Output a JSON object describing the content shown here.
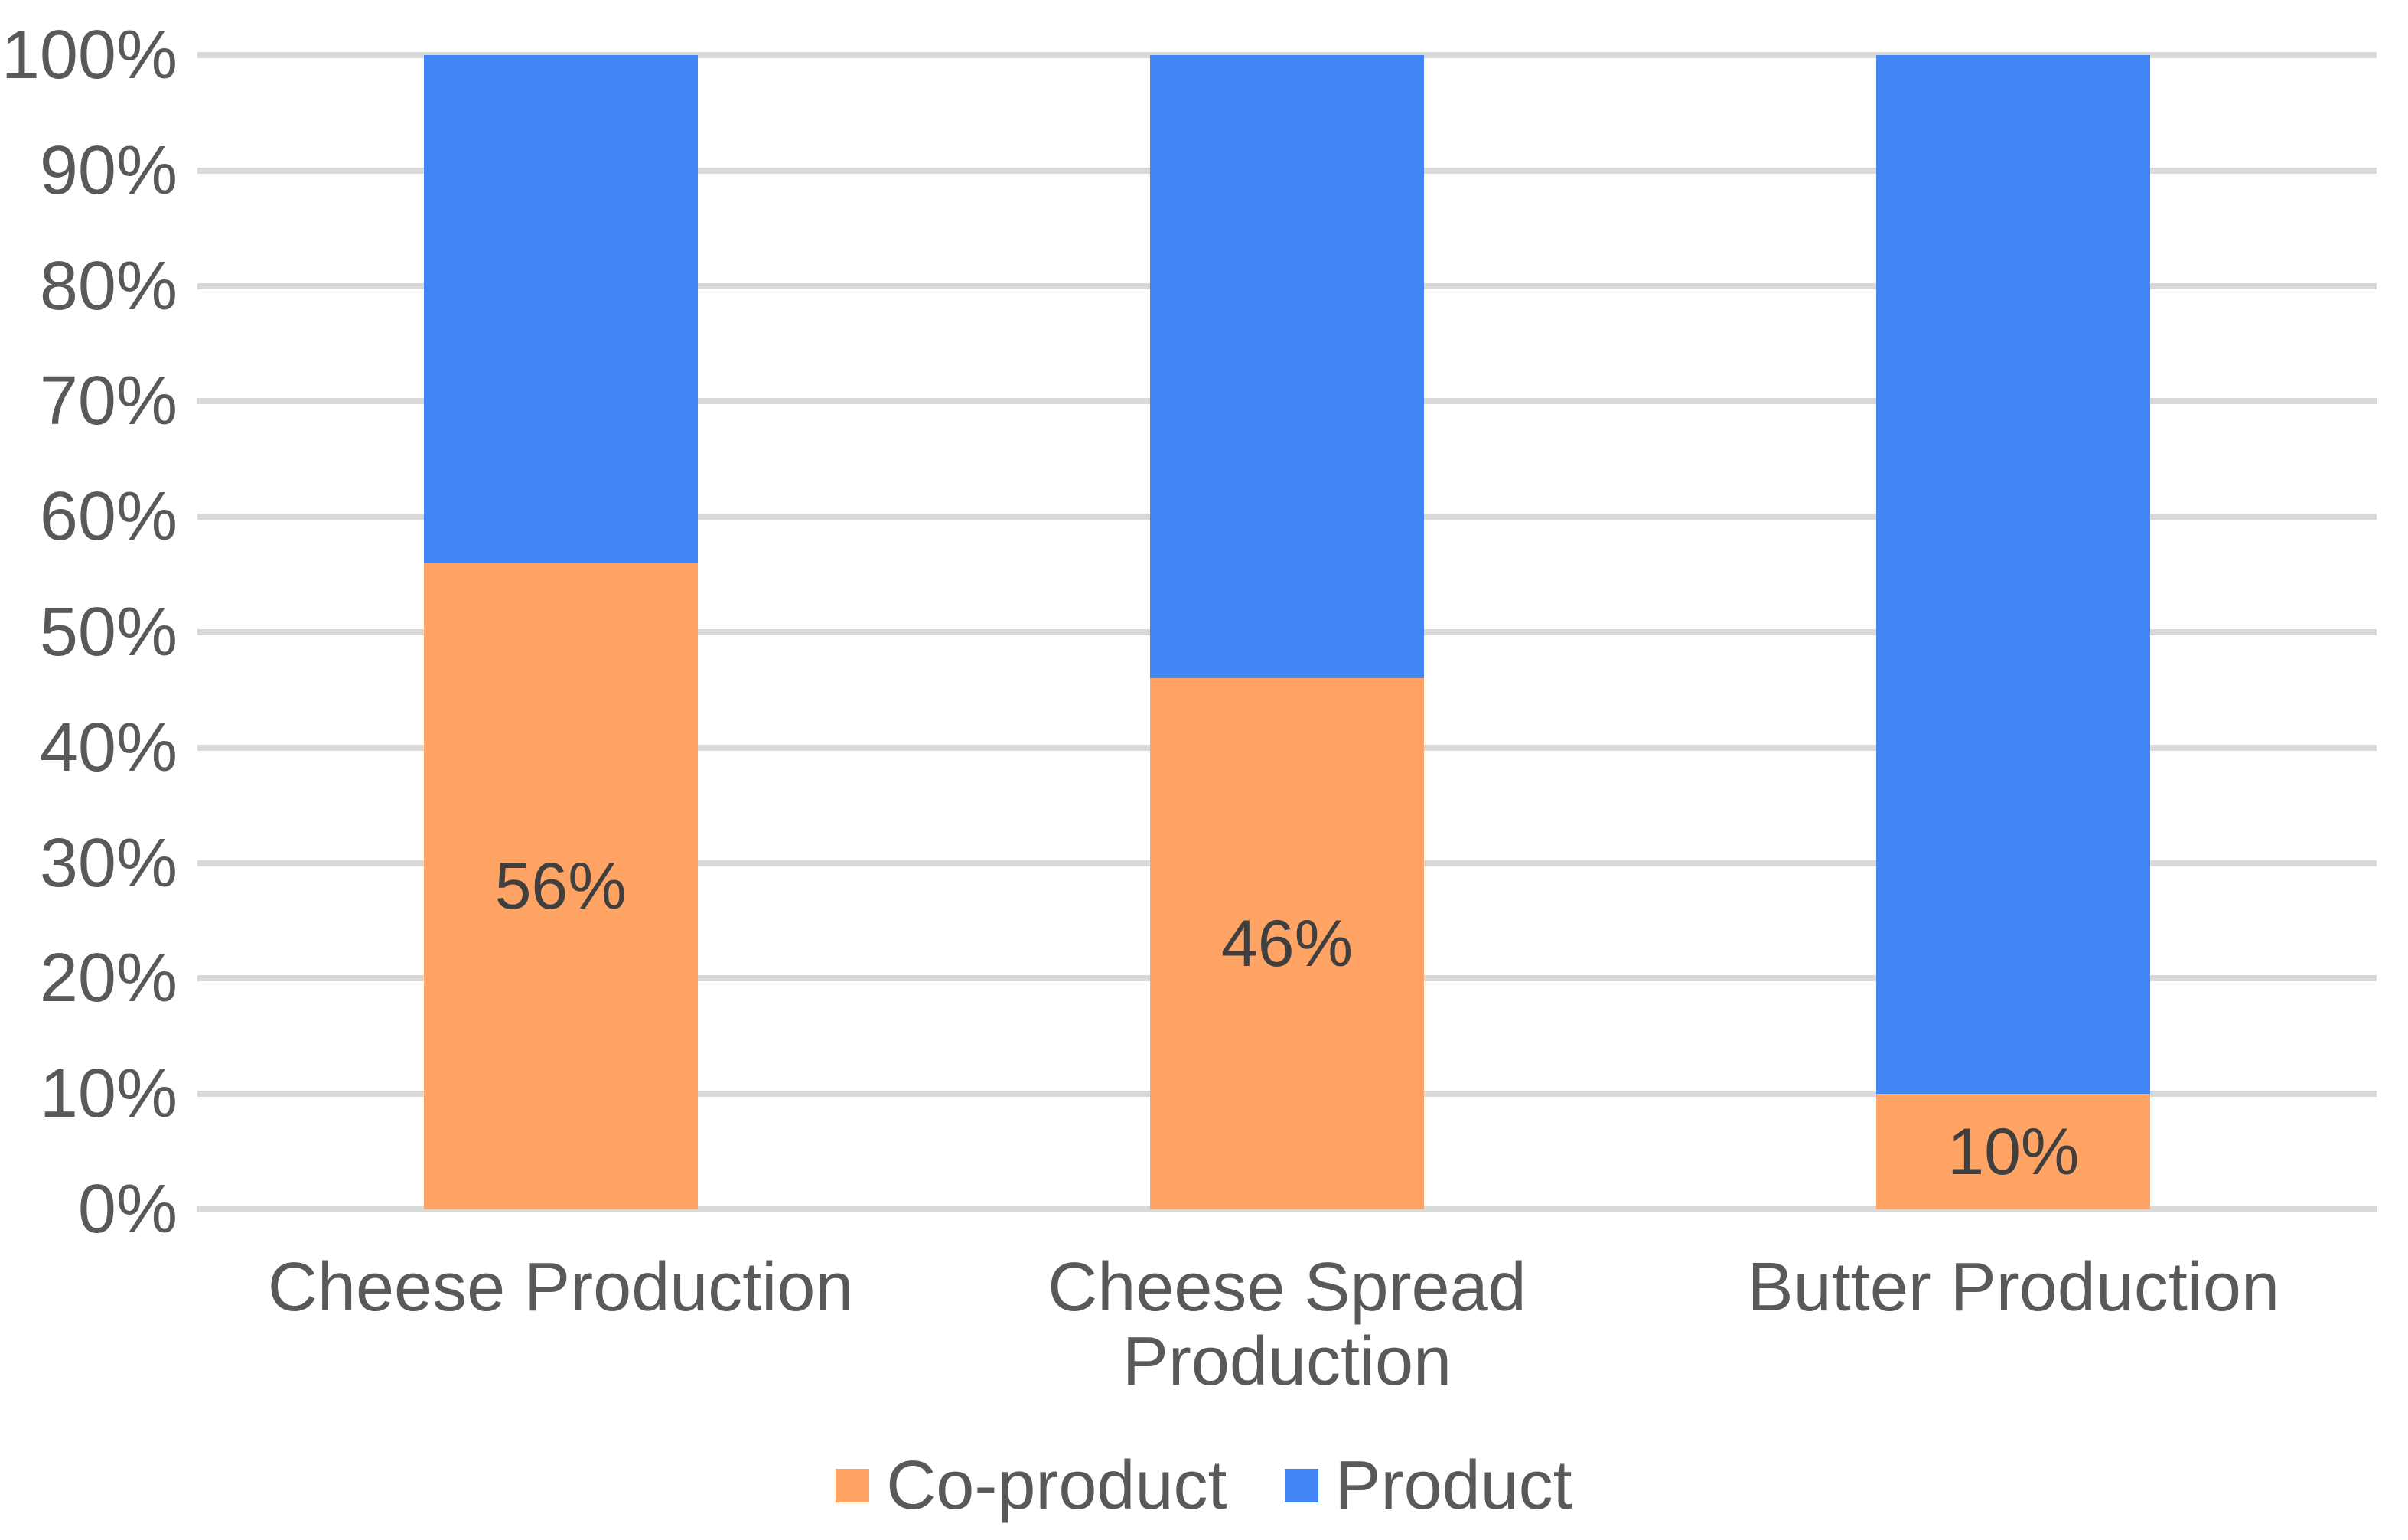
{
  "chart_data": {
    "type": "bar",
    "subtype": "stacked-100-percent",
    "title": "",
    "xlabel": "",
    "ylabel": "",
    "categories": [
      "Cheese Production",
      "Cheese Spread Production",
      "Butter Production"
    ],
    "series": [
      {
        "name": "Co-product",
        "color": "#FFA465",
        "values": [
          56,
          46,
          10
        ],
        "data_labels": [
          "56%",
          "46%",
          "10%"
        ],
        "labels_visible": true
      },
      {
        "name": "Product",
        "color": "#4285F4",
        "values": [
          44,
          54,
          90
        ],
        "data_labels": [],
        "labels_visible": false
      }
    ],
    "ylim": [
      0,
      100
    ],
    "ytick_step": 10,
    "yticks": [
      {
        "value": 0,
        "label": "0%"
      },
      {
        "value": 10,
        "label": "10%"
      },
      {
        "value": 20,
        "label": "20%"
      },
      {
        "value": 30,
        "label": "30%"
      },
      {
        "value": 40,
        "label": "40%"
      },
      {
        "value": 50,
        "label": "50%"
      },
      {
        "value": 60,
        "label": "60%"
      },
      {
        "value": 70,
        "label": "70%"
      },
      {
        "value": 80,
        "label": "80%"
      },
      {
        "value": 90,
        "label": "90%"
      },
      {
        "value": 100,
        "label": "100%"
      }
    ],
    "grid": true,
    "legend_position": "bottom",
    "colors": {
      "background": "#FFFFFF",
      "gridline": "#D9D9D9",
      "axis_text": "#595959",
      "category_text": "#595959",
      "legend_text": "#595959",
      "data_label_text": "#3F3F3F"
    }
  }
}
